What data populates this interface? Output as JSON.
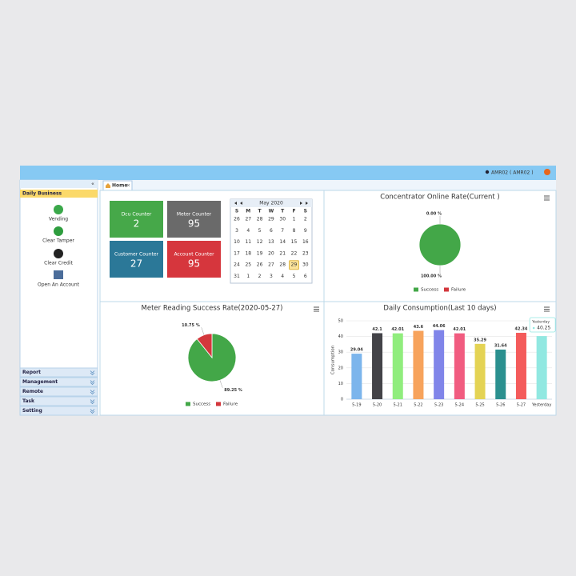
{
  "header": {
    "user": "AMR02 ( AMR02 )"
  },
  "sidebar": {
    "collapse": "«",
    "section": "Daily Business",
    "items": [
      "Vending",
      "Clear Tamper",
      "Clear Credit",
      "Open An Account"
    ],
    "menus": [
      "Report",
      "Management",
      "Remote",
      "Task",
      "Setting"
    ]
  },
  "tabs": [
    "Home"
  ],
  "counters": [
    {
      "label": "Dcu Counter",
      "value": 2,
      "color": "#46a849"
    },
    {
      "label": "Meter Counter",
      "value": 95,
      "color": "#6a6a6a"
    },
    {
      "label": "Customer Counter",
      "value": 27,
      "color": "#2b7898"
    },
    {
      "label": "Account Counter",
      "value": 95,
      "color": "#d6363d"
    }
  ],
  "calendar": {
    "title": "May 2020",
    "weekdays": [
      "S",
      "M",
      "T",
      "W",
      "T",
      "F",
      "S"
    ],
    "weeks": [
      [
        26,
        27,
        28,
        29,
        30,
        1,
        2
      ],
      [
        3,
        4,
        5,
        6,
        7,
        8,
        9
      ],
      [
        10,
        11,
        12,
        13,
        14,
        15,
        16
      ],
      [
        17,
        18,
        19,
        20,
        21,
        22,
        23
      ],
      [
        24,
        25,
        26,
        27,
        28,
        29,
        30
      ],
      [
        31,
        1,
        2,
        3,
        4,
        5,
        6
      ]
    ],
    "today": 29
  },
  "chart_data": [
    {
      "type": "pie",
      "title": "Concentrator Online Rate(Current )",
      "categories": [
        "Success",
        "Failure"
      ],
      "values": [
        100,
        0
      ],
      "value_labels": [
        "100.00 %",
        "0.00 %"
      ],
      "colors": [
        "#43a748",
        "#d3373c"
      ]
    },
    {
      "type": "pie",
      "title": "Meter Reading Success Rate(2020-05-27)",
      "categories": [
        "Success",
        "Failure"
      ],
      "values": [
        89.25,
        10.75
      ],
      "value_labels": [
        "89.25 %",
        "10.75 %"
      ],
      "colors": [
        "#43a748",
        "#d3373c"
      ]
    },
    {
      "type": "bar",
      "title": "Daily Consumption(Last 10 days)",
      "y_label": "Consumption",
      "categories": [
        "5-19",
        "5-20",
        "5-21",
        "5-22",
        "5-23",
        "5-24",
        "5-25",
        "5-26",
        "5-27",
        "Yesterday"
      ],
      "values": [
        29.04,
        42.1,
        42.01,
        43.6,
        44.06,
        42.01,
        35.29,
        31.64,
        42.34,
        40.25
      ],
      "colors": [
        "#7cb5ec",
        "#434348",
        "#90ed7d",
        "#f7a35c",
        "#8085e9",
        "#f15c80",
        "#e4d354",
        "#2b908f",
        "#f45b5b",
        "#91e8e1"
      ],
      "ylim": [
        0,
        50
      ],
      "yticks": [
        0,
        10,
        20,
        30,
        40,
        50
      ],
      "grid": true
    }
  ]
}
